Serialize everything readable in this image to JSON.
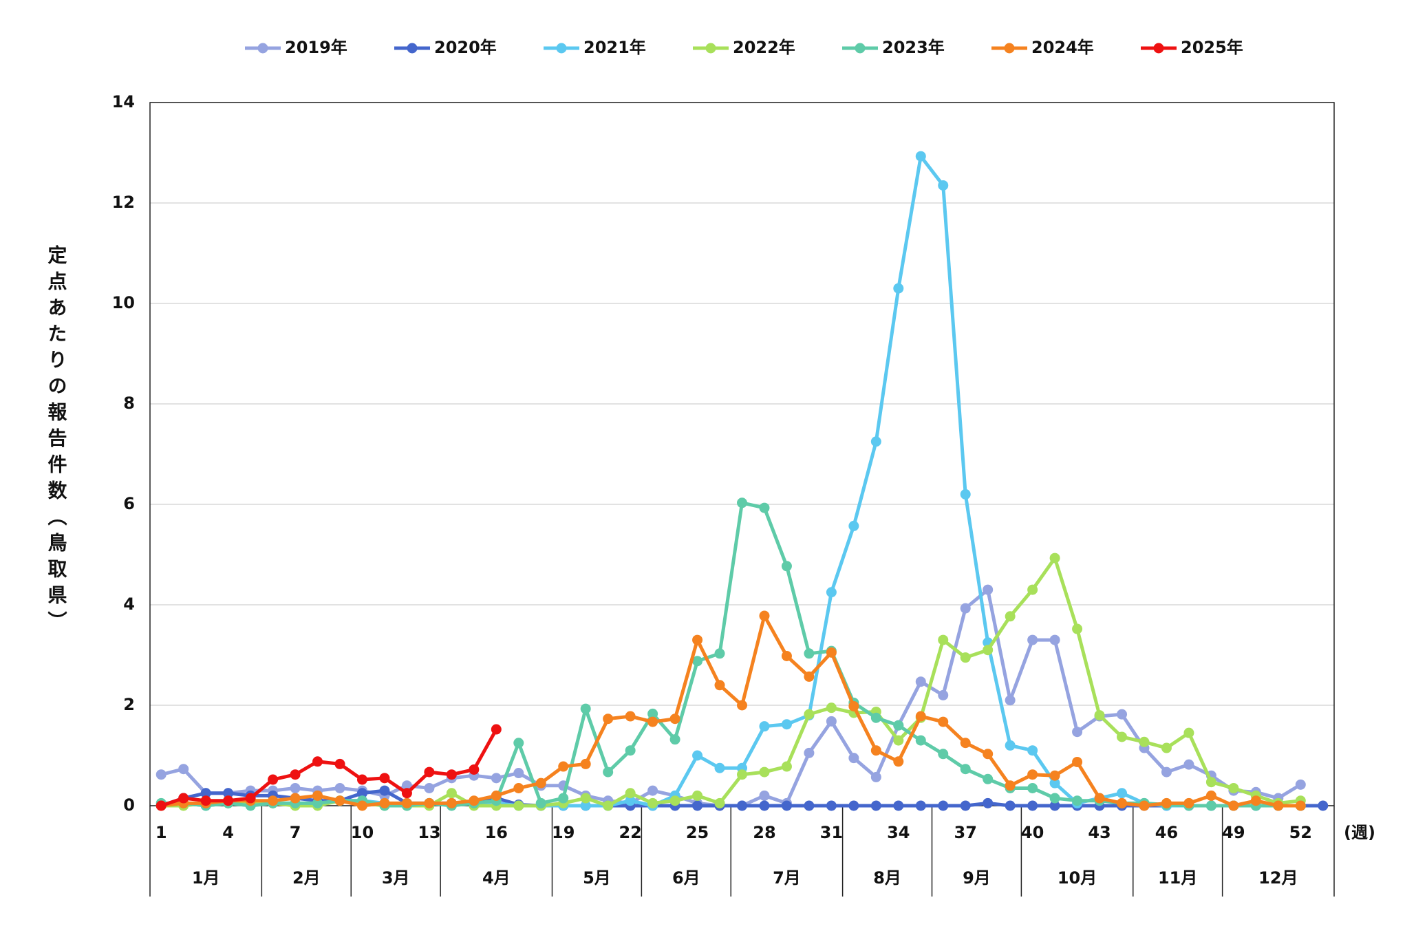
{
  "chart_data": {
    "type": "line",
    "y_label": "定点あたりの報告件数（鳥取県）",
    "x_unit": "(週)",
    "categories": [
      1,
      null,
      null,
      4,
      null,
      null,
      7,
      null,
      null,
      10,
      null,
      null,
      13,
      null,
      null,
      16,
      null,
      null,
      19,
      null,
      null,
      22,
      null,
      null,
      25,
      null,
      null,
      28,
      null,
      null,
      31,
      null,
      null,
      34,
      null,
      null,
      37,
      null,
      null,
      40,
      null,
      null,
      43,
      null,
      null,
      46,
      null,
      null,
      49,
      null,
      null,
      52,
      null
    ],
    "months": [
      "1月",
      "2月",
      "3月",
      "4月",
      "5月",
      "6月",
      "7月",
      "8月",
      "9月",
      "10月",
      "11月",
      "12月"
    ],
    "ylim": [
      0,
      14
    ],
    "yticks": [
      0,
      2,
      4,
      6,
      8,
      10,
      12,
      14
    ],
    "grid": true,
    "series": [
      {
        "name": "2019年",
        "color": "#95a3e0",
        "values": [
          0.62,
          0.73,
          0.25,
          0.25,
          0.3,
          0.3,
          0.35,
          0.3,
          0.35,
          0.3,
          0.2,
          0.4,
          0.35,
          0.55,
          0.6,
          0.55,
          0.65,
          0.4,
          0.4,
          0.2,
          0.1,
          0.05,
          0.3,
          0.2,
          0.05,
          0,
          0,
          0.2,
          0.05,
          1.05,
          1.68,
          0.95,
          0.57,
          1.6,
          2.47,
          2.2,
          3.93,
          4.3,
          2.1,
          3.3,
          3.3,
          1.47,
          1.78,
          1.82,
          1.15,
          0.67,
          0.82,
          0.6,
          0.3,
          0.27,
          0.15,
          0.42,
          null
        ]
      },
      {
        "name": "2020年",
        "color": "#4466cc",
        "values": [
          0,
          0.15,
          0.25,
          0.25,
          0.2,
          0.2,
          0.15,
          0.1,
          0.1,
          0.25,
          0.3,
          0.05,
          0.05,
          0.05,
          0.05,
          0.15,
          0.02,
          0,
          0,
          0,
          0,
          0,
          0,
          0,
          0,
          0,
          0,
          0,
          0,
          0,
          0,
          0,
          0,
          0,
          0,
          0,
          0,
          0.05,
          0,
          0,
          0,
          0,
          0,
          0,
          0,
          0,
          0,
          0,
          0,
          0,
          0,
          0,
          0
        ]
      },
      {
        "name": "2021年",
        "color": "#5bc8f0",
        "values": [
          0,
          0.05,
          0,
          0.05,
          0.05,
          0.05,
          0.05,
          0.05,
          0.1,
          0.1,
          0.05,
          0,
          0.05,
          0.05,
          0.05,
          0.05,
          0,
          0,
          0,
          0,
          0,
          0.1,
          0,
          0.2,
          1.0,
          0.75,
          0.75,
          1.58,
          1.62,
          1.8,
          4.25,
          5.57,
          7.25,
          10.3,
          12.93,
          12.35,
          6.2,
          3.25,
          1.2,
          1.1,
          0.45,
          0.05,
          0.15,
          0.25,
          0.05,
          0,
          0,
          0,
          0,
          0,
          0,
          0,
          null
        ]
      },
      {
        "name": "2022年",
        "color": "#a8e05a",
        "values": [
          0,
          0,
          0.05,
          0.05,
          0.05,
          0.05,
          0,
          0,
          0.1,
          0.05,
          0,
          0,
          0,
          0.25,
          0,
          0,
          0,
          0,
          0.05,
          0.15,
          0,
          0.25,
          0.05,
          0.1,
          0.2,
          0.05,
          0.62,
          0.67,
          0.78,
          1.82,
          1.95,
          1.85,
          1.87,
          1.3,
          1.75,
          3.3,
          2.95,
          3.1,
          3.77,
          4.3,
          4.93,
          3.52,
          1.8,
          1.37,
          1.27,
          1.15,
          1.45,
          0.47,
          0.35,
          0.2,
          0.05,
          0.1,
          null
        ]
      },
      {
        "name": "2023年",
        "color": "#5ecba8",
        "values": [
          0.05,
          0.05,
          0,
          0.05,
          0,
          0.05,
          0.05,
          0.05,
          0.1,
          0.1,
          0,
          0,
          0.05,
          0,
          0.05,
          0.1,
          1.25,
          0.05,
          0.15,
          1.93,
          0.67,
          1.1,
          1.83,
          1.32,
          2.88,
          3.03,
          6.03,
          5.93,
          4.77,
          3.03,
          3.08,
          2.05,
          1.75,
          1.6,
          1.3,
          1.03,
          0.73,
          0.53,
          0.35,
          0.35,
          0.15,
          0.1,
          0.1,
          0.05,
          0.05,
          0.02,
          0,
          0,
          0,
          0,
          0,
          0,
          null
        ]
      },
      {
        "name": "2024年",
        "color": "#f5821f",
        "values": [
          0,
          0.05,
          0.05,
          0.1,
          0.1,
          0.1,
          0.15,
          0.2,
          0.1,
          0,
          0.05,
          0.05,
          0.05,
          0.05,
          0.1,
          0.2,
          0.35,
          0.45,
          0.78,
          0.83,
          1.73,
          1.78,
          1.67,
          1.73,
          3.3,
          2.4,
          2.0,
          3.78,
          2.98,
          2.57,
          3.05,
          1.98,
          1.1,
          0.88,
          1.78,
          1.67,
          1.25,
          1.03,
          0.4,
          0.62,
          0.6,
          0.87,
          0.15,
          0.05,
          0,
          0.05,
          0.05,
          0.2,
          0,
          0.1,
          0,
          0,
          null
        ]
      },
      {
        "name": "2025年",
        "color": "#ee1111",
        "values": [
          0,
          0.15,
          0.1,
          0.1,
          0.15,
          0.52,
          0.62,
          0.88,
          0.83,
          0.52,
          0.55,
          0.25,
          0.67,
          0.62,
          0.72,
          1.52,
          null,
          null,
          null,
          null,
          null,
          null,
          null,
          null,
          null,
          null,
          null,
          null,
          null,
          null,
          null,
          null,
          null,
          null,
          null,
          null,
          null,
          null,
          null,
          null,
          null,
          null,
          null,
          null,
          null,
          null,
          null,
          null,
          null,
          null,
          null,
          null,
          null
        ]
      }
    ]
  }
}
